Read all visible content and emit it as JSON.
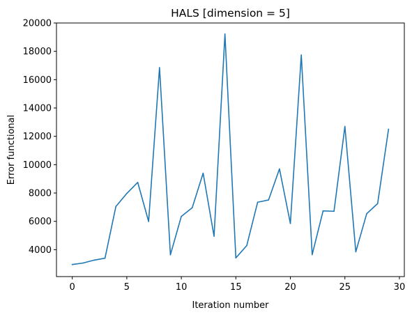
{
  "chart_data": {
    "type": "line",
    "title": "HALS [dimension = 5]",
    "xlabel": "Iteration number",
    "ylabel": "Error functional",
    "xlim": [
      -1.45,
      30.45
    ],
    "ylim": [
      2100,
      20000
    ],
    "xticks": [
      0,
      5,
      10,
      15,
      20,
      25,
      30
    ],
    "yticks": [
      4000,
      6000,
      8000,
      10000,
      12000,
      14000,
      16000,
      18000,
      20000
    ],
    "x_tick_labels": [
      "0",
      "5",
      "10",
      "15",
      "20",
      "25",
      "30"
    ],
    "y_tick_labels": [
      "4000",
      "6000",
      "8000",
      "10000",
      "12000",
      "14000",
      "16000",
      "18000",
      "20000"
    ],
    "grid": false,
    "line_color": "#1f77b4",
    "series": [
      {
        "x": [
          0,
          1,
          2,
          3,
          4,
          5,
          6,
          7,
          8,
          9,
          10,
          11,
          12,
          13,
          14,
          15,
          16,
          17,
          18,
          19,
          20,
          21,
          22,
          23,
          24,
          25,
          26,
          27,
          28,
          29
        ],
        "values": [
          2950,
          3060,
          3260,
          3400,
          7050,
          7970,
          8750,
          5990,
          16850,
          3640,
          6350,
          6960,
          9400,
          4950,
          19220,
          3420,
          4290,
          7350,
          7510,
          9700,
          5850,
          17740,
          3650,
          6740,
          6710,
          12700,
          3850,
          6540,
          7250,
          12500
        ]
      }
    ]
  }
}
